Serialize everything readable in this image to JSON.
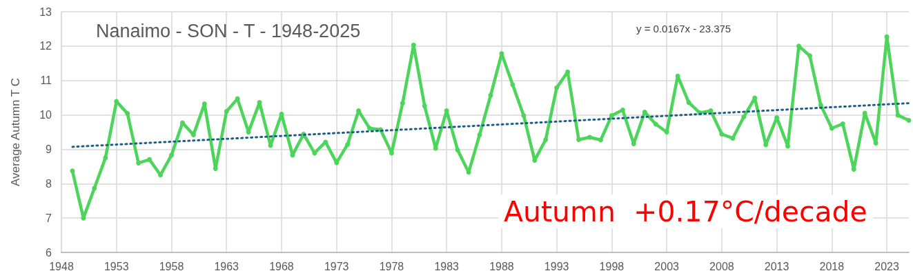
{
  "chart_data": {
    "type": "line",
    "title": "Nanaimo - SON - T - 1948-2025",
    "ylabel": "Average Autumn T C",
    "annotations": [
      "y = 0.0167x - 23.375",
      "Autumn  +0.17°C/decade"
    ],
    "x": [
      1949,
      1950,
      1951,
      1952,
      1953,
      1954,
      1955,
      1956,
      1957,
      1958,
      1959,
      1960,
      1961,
      1962,
      1963,
      1964,
      1965,
      1966,
      1967,
      1968,
      1969,
      1970,
      1971,
      1972,
      1973,
      1974,
      1975,
      1976,
      1977,
      1978,
      1979,
      1980,
      1981,
      1982,
      1983,
      1984,
      1985,
      1986,
      1987,
      1988,
      1989,
      1990,
      1991,
      1992,
      1993,
      1994,
      1995,
      1996,
      1997,
      1998,
      1999,
      2000,
      2001,
      2002,
      2003,
      2004,
      2005,
      2006,
      2007,
      2008,
      2009,
      2010,
      2011,
      2012,
      2013,
      2014,
      2015,
      2016,
      2017,
      2018,
      2019,
      2020,
      2021,
      2022,
      2023,
      2024,
      2025
    ],
    "series": [
      {
        "color": "#4cd55a",
        "marker": "circle",
        "values": [
          8.37,
          7.0,
          7.87,
          8.75,
          10.39,
          10.04,
          8.6,
          8.7,
          8.25,
          8.83,
          9.77,
          9.42,
          10.32,
          8.44,
          10.1,
          10.47,
          9.5,
          10.36,
          9.11,
          10.02,
          8.83,
          9.44,
          8.89,
          9.21,
          8.61,
          9.14,
          10.12,
          9.61,
          9.57,
          8.89,
          10.34,
          12.03,
          10.26,
          9.03,
          10.12,
          8.98,
          8.33,
          9.42,
          10.57,
          11.78,
          10.88,
          9.98,
          8.68,
          9.28,
          10.79,
          11.25,
          9.28,
          9.35,
          9.27,
          9.98,
          10.14,
          9.16,
          10.08,
          9.73,
          9.5,
          11.13,
          10.36,
          10.06,
          10.12,
          9.44,
          9.32,
          9.94,
          10.49,
          9.13,
          9.92,
          9.09,
          12.0,
          11.72,
          10.28,
          9.61,
          9.74,
          8.42,
          10.05,
          9.18,
          12.27,
          9.99,
          9.84
        ]
      },
      {
        "color": "#1b5e87",
        "marker": "none",
        "line_style": "dotted",
        "x": [
          1949,
          2025
        ],
        "values": [
          9.07,
          10.34
        ]
      }
    ],
    "xlim": [
      1948,
      2025
    ],
    "xticks": [
      1948,
      1953,
      1958,
      1963,
      1968,
      1973,
      1978,
      1983,
      1988,
      1993,
      1998,
      2003,
      2008,
      2013,
      2018,
      2023
    ],
    "ylim": [
      6,
      13
    ],
    "yticks": [
      6,
      7,
      8,
      9,
      10,
      11,
      12,
      13
    ],
    "grid": true
  }
}
